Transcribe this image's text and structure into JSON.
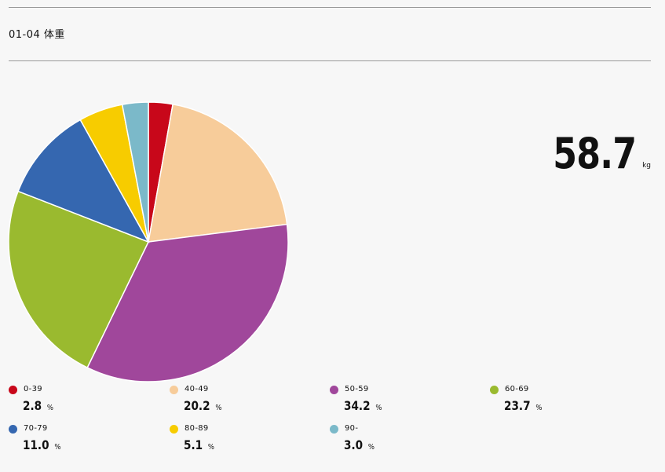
{
  "header": {
    "title": "01-04 体重"
  },
  "summary": {
    "value": "58.7",
    "unit": "kg"
  },
  "chart_data": {
    "type": "pie",
    "title": "",
    "slices": [
      {
        "label": "0-39",
        "value": 2.8,
        "display": "2.8",
        "color": "#c8071a"
      },
      {
        "label": "40-49",
        "value": 20.2,
        "display": "20.2",
        "color": "#f7cc9a"
      },
      {
        "label": "50-59",
        "value": 34.2,
        "display": "34.2",
        "color": "#a0479b"
      },
      {
        "label": "60-69",
        "value": 23.7,
        "display": "23.7",
        "color": "#9aba2f"
      },
      {
        "label": "70-79",
        "value": 11.0,
        "display": "11.0",
        "color": "#3567b0"
      },
      {
        "label": "80-89",
        "value": 5.1,
        "display": "5.1",
        "color": "#f7cc00"
      },
      {
        "label": "90-",
        "value": 3.0,
        "display": "3.0",
        "color": "#7bb9c9"
      }
    ],
    "percent_unit": "%",
    "legend_placement": "bottom"
  }
}
